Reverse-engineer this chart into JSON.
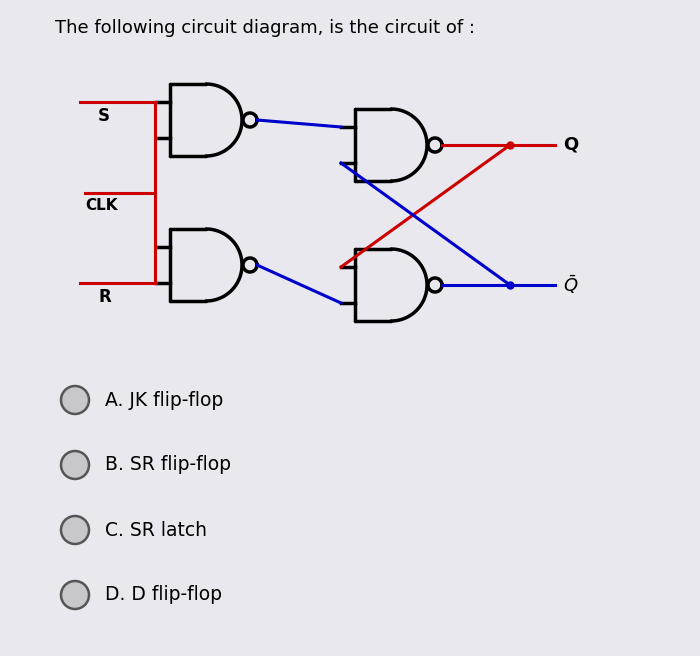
{
  "title": "The following circuit diagram, is the circuit of :",
  "title_fontsize": 13,
  "background_color": "#e8e8ee",
  "options": [
    "A. JK flip-flop",
    "B. SR flip-flop",
    "C. SR latch",
    "D. D flip-flop"
  ],
  "option_fontsize": 13.5,
  "wire_color_red": "#cc0000",
  "wire_color_blue": "#0000cc",
  "gate_color": "#000000",
  "label_S": "S",
  "label_CLK": "CLK",
  "label_R": "R",
  "label_Q": "Q",
  "label_Qbar": "$\\bar{Q}$",
  "gate_lw": 2.5,
  "wire_lw": 2.2
}
